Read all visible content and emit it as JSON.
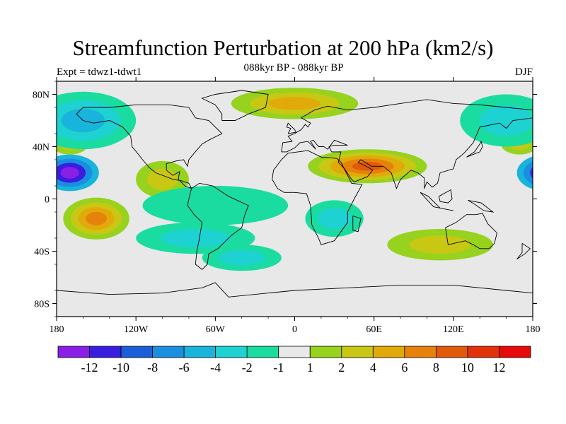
{
  "title": "Streamfunction Perturbation at 200 hPa (km2/s)",
  "subtitle": "088kyr BP - 088kyr BP",
  "left_label": "Expt = tdwz1-tdwt1",
  "right_label": "DJF",
  "lat_ticks": [
    "80N",
    "40N",
    "0",
    "40S",
    "80S"
  ],
  "lon_ticks": [
    "180",
    "120W",
    "60W",
    "0",
    "60E",
    "120E",
    "180"
  ],
  "colorbar": {
    "colors": [
      "#8a1fe6",
      "#3a1ee0",
      "#1a5fd8",
      "#1a8fe0",
      "#19b4dc",
      "#1ed2d2",
      "#1adca0",
      "#e8e8e8",
      "#96d21e",
      "#c8c814",
      "#e1aa0a",
      "#e6820a",
      "#e15a0a",
      "#e1320a",
      "#e60a0a"
    ],
    "labels": [
      "-12",
      "-10",
      "-8",
      "-6",
      "-4",
      "-2",
      "-1",
      "1",
      "2",
      "4",
      "6",
      "8",
      "10",
      "12"
    ]
  },
  "map_field": {
    "blobs": [
      {
        "lon": -170,
        "lat": 20,
        "rx": 22,
        "ry": 14,
        "levels": [
          -3,
          -6,
          -9,
          -12
        ]
      },
      {
        "lon": 190,
        "lat": 20,
        "rx": 22,
        "ry": 14,
        "levels": [
          -3,
          -6,
          -9,
          -12
        ]
      },
      {
        "lon": -170,
        "lat": 42,
        "rx": 14,
        "ry": 8,
        "levels": [
          2,
          4
        ]
      },
      {
        "lon": 170,
        "lat": 42,
        "rx": 14,
        "ry": 8,
        "levels": [
          2,
          4
        ]
      },
      {
        "lon": -150,
        "lat": -15,
        "rx": 25,
        "ry": 16,
        "levels": [
          2,
          4,
          6,
          8
        ]
      },
      {
        "lon": -100,
        "lat": 15,
        "rx": 20,
        "ry": 14,
        "levels": [
          2,
          4
        ]
      },
      {
        "lon": 0,
        "lat": 73,
        "rx": 48,
        "ry": 12,
        "levels": [
          2,
          4,
          6
        ]
      },
      {
        "lon": 55,
        "lat": 25,
        "rx": 45,
        "ry": 13,
        "levels": [
          2,
          4,
          6,
          8,
          10
        ]
      },
      {
        "lon": 110,
        "lat": -35,
        "rx": 40,
        "ry": 12,
        "levels": [
          2,
          4
        ]
      },
      {
        "lon": -60,
        "lat": -5,
        "rx": 55,
        "ry": 15,
        "levels": [
          -1
        ]
      },
      {
        "lon": -75,
        "lat": -30,
        "rx": 45,
        "ry": 12,
        "levels": [
          -1,
          -2
        ]
      },
      {
        "lon": -160,
        "lat": 60,
        "rx": 40,
        "ry": 22,
        "levels": [
          -1,
          -2,
          -3
        ]
      },
      {
        "lon": 160,
        "lat": 60,
        "rx": 35,
        "ry": 20,
        "levels": [
          -1,
          -2
        ]
      },
      {
        "lon": 30,
        "lat": -15,
        "rx": 22,
        "ry": 14,
        "levels": [
          -1,
          -2
        ]
      },
      {
        "lon": -40,
        "lat": -45,
        "rx": 30,
        "ry": 10,
        "levels": [
          -1,
          -2
        ]
      }
    ]
  }
}
